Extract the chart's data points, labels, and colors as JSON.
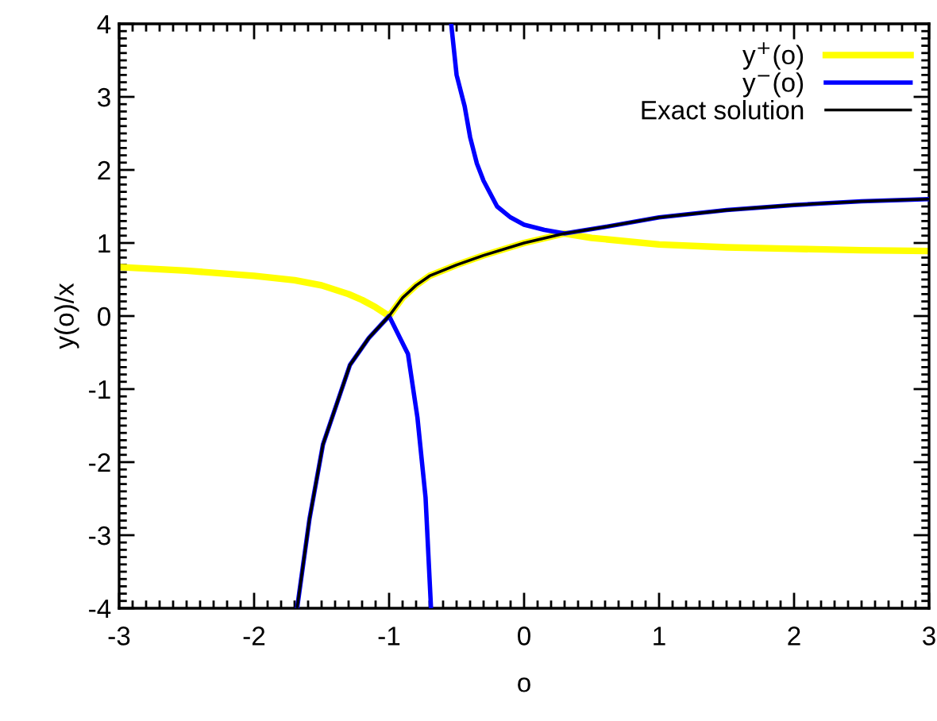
{
  "chart_data": {
    "type": "line",
    "xlabel": "o",
    "ylabel": "y(o)/x",
    "xlim": [
      -3,
      3
    ],
    "ylim": [
      -4,
      4
    ],
    "xticks": [
      -3,
      -2,
      -1,
      0,
      1,
      2,
      3
    ],
    "yticks": [
      -4,
      -3,
      -2,
      -1,
      0,
      1,
      2,
      3,
      4
    ],
    "grid": false,
    "legend": "top right",
    "marker": "none",
    "line_style": "solid",
    "series": [
      {
        "name": "y$^{+}$(o)",
        "color": "#ffff00",
        "x": [
          -3,
          -2.5,
          -2,
          -1.7,
          -1.5,
          -1.3,
          -1.2,
          -1.1,
          -1,
          -0.9,
          -0.8,
          -0.7,
          -0.5,
          -0.3,
          0,
          0.3,
          0.5,
          1,
          1.5,
          2,
          2.5,
          3
        ],
        "values": [
          0.67,
          0.62,
          0.55,
          0.49,
          0.42,
          0.3,
          0.22,
          0.12,
          0,
          0.25,
          0.42,
          0.55,
          0.7,
          0.83,
          1,
          1.13,
          1.07,
          0.98,
          0.94,
          0.92,
          0.9,
          0.89
        ]
      },
      {
        "name": "y$^{−}$(o)",
        "color": "#0000ff",
        "x": [
          -0.54,
          -0.5,
          -0.44,
          -0.4,
          -0.35,
          -0.3,
          -0.2,
          -0.1,
          0,
          0.15,
          0.3,
          0.6,
          1,
          1.5,
          2,
          2.5,
          3,
          null,
          -1.68,
          -1.59,
          -1.49,
          -1.29,
          -1.15,
          -1,
          -0.86,
          -0.79,
          -0.73,
          -0.69
        ],
        "values": [
          4,
          3.3,
          2.87,
          2.45,
          2.09,
          1.85,
          1.5,
          1.35,
          1.25,
          1.18,
          1.13,
          1.22,
          1.35,
          1.45,
          1.52,
          1.57,
          1.6,
          null,
          -3.98,
          -2.78,
          -1.76,
          -0.67,
          -0.3,
          0,
          -0.52,
          -1.39,
          -2.48,
          -3.98
        ]
      },
      {
        "name": "Exact solution",
        "color": "#000000",
        "x": [
          -1.68,
          -1.59,
          -1.49,
          -1.29,
          -1.15,
          -1,
          -0.9,
          -0.8,
          -0.7,
          -0.5,
          -0.3,
          0,
          0.3,
          0.6,
          1,
          1.5,
          2,
          2.5,
          3
        ],
        "values": [
          -3.98,
          -2.78,
          -1.76,
          -0.67,
          -0.3,
          0,
          0.25,
          0.42,
          0.55,
          0.7,
          0.83,
          1,
          1.13,
          1.22,
          1.35,
          1.45,
          1.52,
          1.57,
          1.6
        ]
      }
    ]
  }
}
